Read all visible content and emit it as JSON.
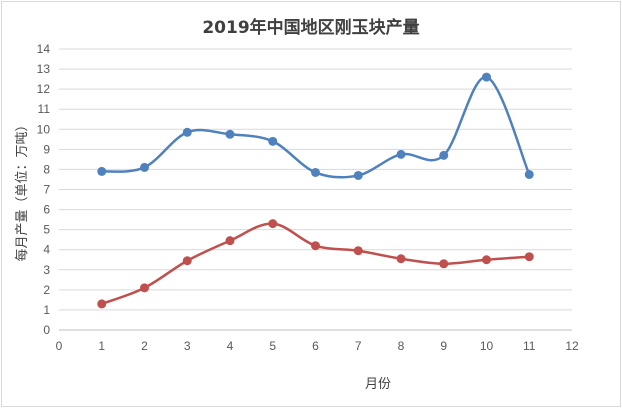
{
  "chart_data": {
    "type": "line",
    "title": "2019年中国地区刚玉块产量",
    "xlabel": "月份",
    "ylabel": "每月产量（单位：万吨）",
    "xlim": [
      0,
      12
    ],
    "ylim": [
      0,
      14
    ],
    "x_ticks": [
      0,
      1,
      2,
      3,
      4,
      5,
      6,
      7,
      8,
      9,
      10,
      11,
      12
    ],
    "y_ticks": [
      0,
      1,
      2,
      3,
      4,
      5,
      6,
      7,
      8,
      9,
      10,
      11,
      12,
      13,
      14
    ],
    "grid": "horizontal",
    "legend": "none",
    "smooth": true,
    "x": [
      1,
      2,
      3,
      4,
      5,
      6,
      7,
      8,
      9,
      10,
      11
    ],
    "series": [
      {
        "color": "#4f81bd",
        "values": [
          7.9,
          8.1,
          9.85,
          9.75,
          9.4,
          7.85,
          7.7,
          8.75,
          8.7,
          12.6,
          7.75
        ]
      },
      {
        "color": "#c0504d",
        "values": [
          1.3,
          2.1,
          3.45,
          4.45,
          5.3,
          4.2,
          3.95,
          3.55,
          3.3,
          3.5,
          3.65
        ]
      }
    ]
  }
}
